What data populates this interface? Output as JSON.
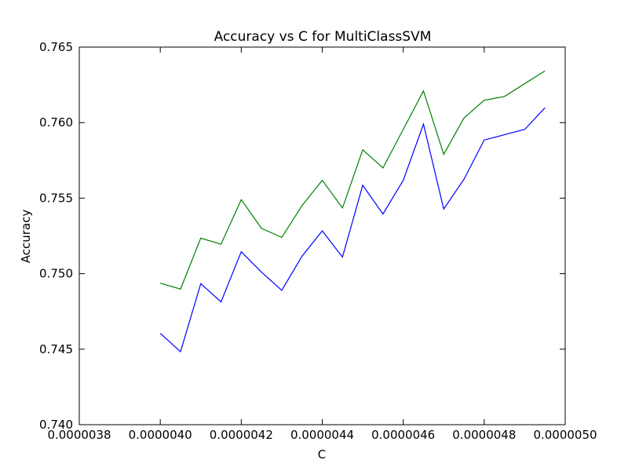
{
  "chart_data": {
    "type": "line",
    "title": "Accuracy vs C for MultiClassSVM",
    "xlabel": "C",
    "ylabel": "Accuracy",
    "xlim": [
      3.8e-06,
      5e-06
    ],
    "ylim": [
      0.74,
      0.765
    ],
    "xticks": [
      "0.0000038",
      "0.0000040",
      "0.0000042",
      "0.0000044",
      "0.0000046",
      "0.0000048",
      "0.0000050"
    ],
    "yticks": [
      "0.740",
      "0.745",
      "0.750",
      "0.755",
      "0.760",
      "0.765"
    ],
    "grid": false,
    "x": [
      4e-06,
      4.05e-06,
      4.1e-06,
      4.15e-06,
      4.2e-06,
      4.25e-06,
      4.3e-06,
      4.35e-06,
      4.4e-06,
      4.45e-06,
      4.5e-06,
      4.55e-06,
      4.6e-06,
      4.65e-06,
      4.7e-06,
      4.75e-06,
      4.8e-06,
      4.85e-06,
      4.9e-06,
      4.95e-06
    ],
    "series": [
      {
        "color": "#0000ff",
        "values": [
          0.74605,
          0.74483,
          0.74934,
          0.74813,
          0.75145,
          0.7501,
          0.7489,
          0.75115,
          0.75283,
          0.7511,
          0.75585,
          0.75395,
          0.75618,
          0.7599,
          0.75428,
          0.75625,
          0.75885,
          0.7592,
          0.75955,
          0.76098
        ]
      },
      {
        "color": "#008000",
        "values": [
          0.74937,
          0.74898,
          0.75235,
          0.75195,
          0.7549,
          0.753,
          0.7524,
          0.7545,
          0.75618,
          0.75435,
          0.7582,
          0.757,
          0.75955,
          0.7621,
          0.7579,
          0.7603,
          0.76148,
          0.76173,
          0.76258,
          0.76342
        ]
      }
    ]
  }
}
